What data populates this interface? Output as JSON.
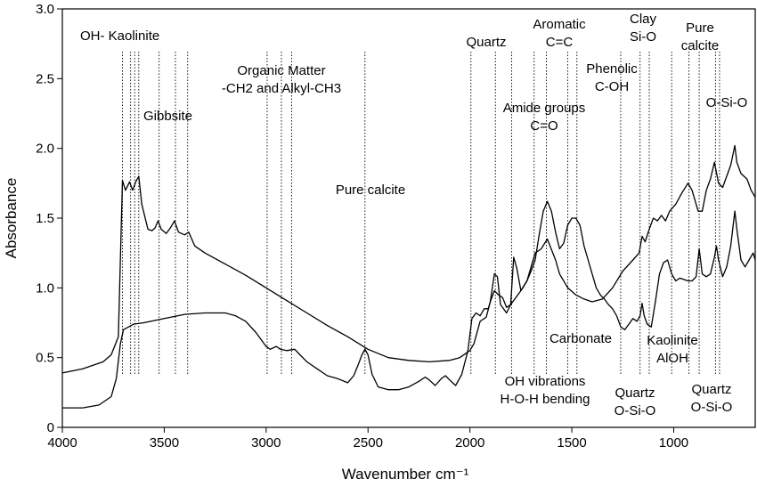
{
  "chart_data": {
    "type": "line",
    "xlabel": "Wavenumber cm⁻¹",
    "ylabel": "Absorbance",
    "xlim": [
      4000,
      600
    ],
    "ylim": [
      0,
      3.0
    ],
    "x_reversed": true,
    "x_ticks": [
      "4000",
      "3500",
      "3000",
      "2500",
      "2000",
      "1500",
      "1000"
    ],
    "y_ticks": [
      "0",
      "0.5",
      "1.0",
      "1.5",
      "2.0",
      "2.5",
      "3.0"
    ],
    "series": [
      {
        "name": "",
        "points": [
          [
            4000,
            0.39
          ],
          [
            3900,
            0.42
          ],
          [
            3800,
            0.47
          ],
          [
            3760,
            0.52
          ],
          [
            3725,
            0.65
          ],
          [
            3705,
            1.77
          ],
          [
            3690,
            1.7
          ],
          [
            3670,
            1.76
          ],
          [
            3655,
            1.7
          ],
          [
            3640,
            1.76
          ],
          [
            3625,
            1.8
          ],
          [
            3610,
            1.6
          ],
          [
            3580,
            1.42
          ],
          [
            3560,
            1.41
          ],
          [
            3545,
            1.43
          ],
          [
            3530,
            1.48
          ],
          [
            3515,
            1.42
          ],
          [
            3490,
            1.39
          ],
          [
            3470,
            1.43
          ],
          [
            3450,
            1.48
          ],
          [
            3430,
            1.4
          ],
          [
            3400,
            1.38
          ],
          [
            3380,
            1.4
          ],
          [
            3350,
            1.3
          ],
          [
            3300,
            1.25
          ],
          [
            3200,
            1.17
          ],
          [
            3100,
            1.09
          ],
          [
            3000,
            1.0
          ],
          [
            2900,
            0.91
          ],
          [
            2800,
            0.82
          ],
          [
            2700,
            0.73
          ],
          [
            2600,
            0.65
          ],
          [
            2500,
            0.56
          ],
          [
            2400,
            0.5
          ],
          [
            2300,
            0.48
          ],
          [
            2200,
            0.47
          ],
          [
            2100,
            0.48
          ],
          [
            2050,
            0.5
          ],
          [
            2000,
            0.55
          ],
          [
            1980,
            0.6
          ],
          [
            1950,
            0.76
          ],
          [
            1920,
            0.79
          ],
          [
            1900,
            0.9
          ],
          [
            1880,
            1.1
          ],
          [
            1865,
            1.08
          ],
          [
            1850,
            0.88
          ],
          [
            1820,
            0.82
          ],
          [
            1800,
            0.88
          ],
          [
            1785,
            1.22
          ],
          [
            1770,
            1.14
          ],
          [
            1750,
            0.98
          ],
          [
            1720,
            1.05
          ],
          [
            1700,
            1.15
          ],
          [
            1680,
            1.25
          ],
          [
            1650,
            1.28
          ],
          [
            1620,
            1.35
          ],
          [
            1580,
            1.2
          ],
          [
            1560,
            1.1
          ],
          [
            1520,
            1.0
          ],
          [
            1480,
            0.95
          ],
          [
            1440,
            0.92
          ],
          [
            1400,
            0.9
          ],
          [
            1350,
            0.92
          ],
          [
            1300,
            1.0
          ],
          [
            1250,
            1.12
          ],
          [
            1200,
            1.2
          ],
          [
            1170,
            1.25
          ],
          [
            1155,
            1.37
          ],
          [
            1140,
            1.33
          ],
          [
            1120,
            1.42
          ],
          [
            1100,
            1.5
          ],
          [
            1080,
            1.48
          ],
          [
            1060,
            1.52
          ],
          [
            1040,
            1.48
          ],
          [
            1020,
            1.55
          ],
          [
            990,
            1.6
          ],
          [
            960,
            1.68
          ],
          [
            930,
            1.75
          ],
          [
            910,
            1.7
          ],
          [
            880,
            1.55
          ],
          [
            860,
            1.55
          ],
          [
            840,
            1.7
          ],
          [
            820,
            1.78
          ],
          [
            800,
            1.9
          ],
          [
            780,
            1.75
          ],
          [
            760,
            1.72
          ],
          [
            740,
            1.8
          ],
          [
            720,
            1.88
          ],
          [
            700,
            2.02
          ],
          [
            690,
            1.9
          ],
          [
            670,
            1.82
          ],
          [
            640,
            1.78
          ],
          [
            620,
            1.7
          ],
          [
            600,
            1.65
          ]
        ]
      },
      {
        "name": "",
        "points": [
          [
            4000,
            0.14
          ],
          [
            3900,
            0.14
          ],
          [
            3820,
            0.16
          ],
          [
            3760,
            0.22
          ],
          [
            3735,
            0.35
          ],
          [
            3715,
            0.6
          ],
          [
            3700,
            0.7
          ],
          [
            3650,
            0.74
          ],
          [
            3600,
            0.75
          ],
          [
            3500,
            0.78
          ],
          [
            3400,
            0.81
          ],
          [
            3300,
            0.82
          ],
          [
            3200,
            0.82
          ],
          [
            3150,
            0.8
          ],
          [
            3100,
            0.76
          ],
          [
            3050,
            0.68
          ],
          [
            3000,
            0.58
          ],
          [
            2980,
            0.56
          ],
          [
            2950,
            0.58
          ],
          [
            2930,
            0.56
          ],
          [
            2900,
            0.55
          ],
          [
            2860,
            0.56
          ],
          [
            2840,
            0.53
          ],
          [
            2800,
            0.47
          ],
          [
            2750,
            0.42
          ],
          [
            2700,
            0.37
          ],
          [
            2650,
            0.35
          ],
          [
            2600,
            0.32
          ],
          [
            2570,
            0.37
          ],
          [
            2545,
            0.46
          ],
          [
            2530,
            0.52
          ],
          [
            2515,
            0.56
          ],
          [
            2500,
            0.52
          ],
          [
            2480,
            0.38
          ],
          [
            2450,
            0.29
          ],
          [
            2400,
            0.27
          ],
          [
            2350,
            0.27
          ],
          [
            2300,
            0.29
          ],
          [
            2250,
            0.33
          ],
          [
            2220,
            0.36
          ],
          [
            2200,
            0.34
          ],
          [
            2170,
            0.3
          ],
          [
            2140,
            0.35
          ],
          [
            2120,
            0.37
          ],
          [
            2100,
            0.34
          ],
          [
            2070,
            0.3
          ],
          [
            2040,
            0.38
          ],
          [
            2010,
            0.55
          ],
          [
            1990,
            0.78
          ],
          [
            1970,
            0.82
          ],
          [
            1950,
            0.8
          ],
          [
            1930,
            0.85
          ],
          [
            1910,
            0.85
          ],
          [
            1900,
            0.9
          ],
          [
            1880,
            0.98
          ],
          [
            1860,
            0.95
          ],
          [
            1840,
            0.93
          ],
          [
            1820,
            0.86
          ],
          [
            1800,
            0.88
          ],
          [
            1780,
            0.92
          ],
          [
            1760,
            0.96
          ],
          [
            1740,
            1.0
          ],
          [
            1720,
            1.05
          ],
          [
            1700,
            1.12
          ],
          [
            1680,
            1.2
          ],
          [
            1660,
            1.38
          ],
          [
            1640,
            1.55
          ],
          [
            1620,
            1.62
          ],
          [
            1600,
            1.55
          ],
          [
            1580,
            1.4
          ],
          [
            1560,
            1.28
          ],
          [
            1540,
            1.32
          ],
          [
            1520,
            1.45
          ],
          [
            1500,
            1.5
          ],
          [
            1480,
            1.5
          ],
          [
            1460,
            1.45
          ],
          [
            1440,
            1.3
          ],
          [
            1420,
            1.2
          ],
          [
            1400,
            1.1
          ],
          [
            1380,
            1.0
          ],
          [
            1360,
            0.95
          ],
          [
            1340,
            0.92
          ],
          [
            1320,
            0.88
          ],
          [
            1300,
            0.85
          ],
          [
            1280,
            0.8
          ],
          [
            1260,
            0.72
          ],
          [
            1240,
            0.7
          ],
          [
            1220,
            0.74
          ],
          [
            1200,
            0.78
          ],
          [
            1180,
            0.76
          ],
          [
            1165,
            0.8
          ],
          [
            1155,
            0.89
          ],
          [
            1145,
            0.8
          ],
          [
            1130,
            0.74
          ],
          [
            1110,
            0.72
          ],
          [
            1090,
            0.9
          ],
          [
            1070,
            1.1
          ],
          [
            1050,
            1.18
          ],
          [
            1030,
            1.2
          ],
          [
            1010,
            1.1
          ],
          [
            990,
            1.05
          ],
          [
            970,
            1.07
          ],
          [
            950,
            1.06
          ],
          [
            930,
            1.05
          ],
          [
            910,
            1.05
          ],
          [
            890,
            1.08
          ],
          [
            875,
            1.28
          ],
          [
            860,
            1.1
          ],
          [
            840,
            1.08
          ],
          [
            820,
            1.1
          ],
          [
            800,
            1.22
          ],
          [
            790,
            1.3
          ],
          [
            780,
            1.2
          ],
          [
            760,
            1.08
          ],
          [
            740,
            1.15
          ],
          [
            720,
            1.3
          ],
          [
            700,
            1.55
          ],
          [
            690,
            1.42
          ],
          [
            670,
            1.2
          ],
          [
            650,
            1.15
          ],
          [
            630,
            1.2
          ],
          [
            610,
            1.25
          ],
          [
            600,
            1.2
          ]
        ]
      }
    ],
    "markers": [
      3705,
      3665,
      3645,
      3625,
      3525,
      3445,
      3385,
      2995,
      2925,
      2875,
      2515,
      1995,
      1875,
      1795,
      1685,
      1625,
      1520,
      1475,
      1260,
      1165,
      1120,
      1010,
      925,
      875,
      795,
      775
    ],
    "annotations": {
      "kaolinite_oh": "OH- Kaolinite",
      "gibbsite": "Gibbsite",
      "organic_1": "Organic Matter",
      "organic_2": "-CH2 and Alkyl-CH3",
      "pure_calcite_mid": "Pure calcite",
      "quartz_top": "Quartz",
      "aromatic_1": "Aromatic",
      "aromatic_2": "C=C",
      "clay_1": "Clay",
      "clay_2": "Si-O",
      "pure_calcite_r1": "Pure",
      "pure_calcite_r2": "calcite",
      "phenolic_1": "Phenolic",
      "phenolic_2": "C-OH",
      "amide_1": "Amide groups",
      "amide_2": "C=O",
      "osio_top": "O-Si-O",
      "carbonate": "Carbonate",
      "kaolinite_alooh_1": "Kaolinite",
      "kaolinite_alooh_2": "AlOH",
      "oh_vib_1": "OH vibrations",
      "oh_vib_2": "H-O-H bending",
      "quartz_b1_1": "Quartz",
      "quartz_b1_2": "O-Si-O",
      "quartz_b2_1": "Quartz",
      "quartz_b2_2": "O-Si-O"
    }
  }
}
